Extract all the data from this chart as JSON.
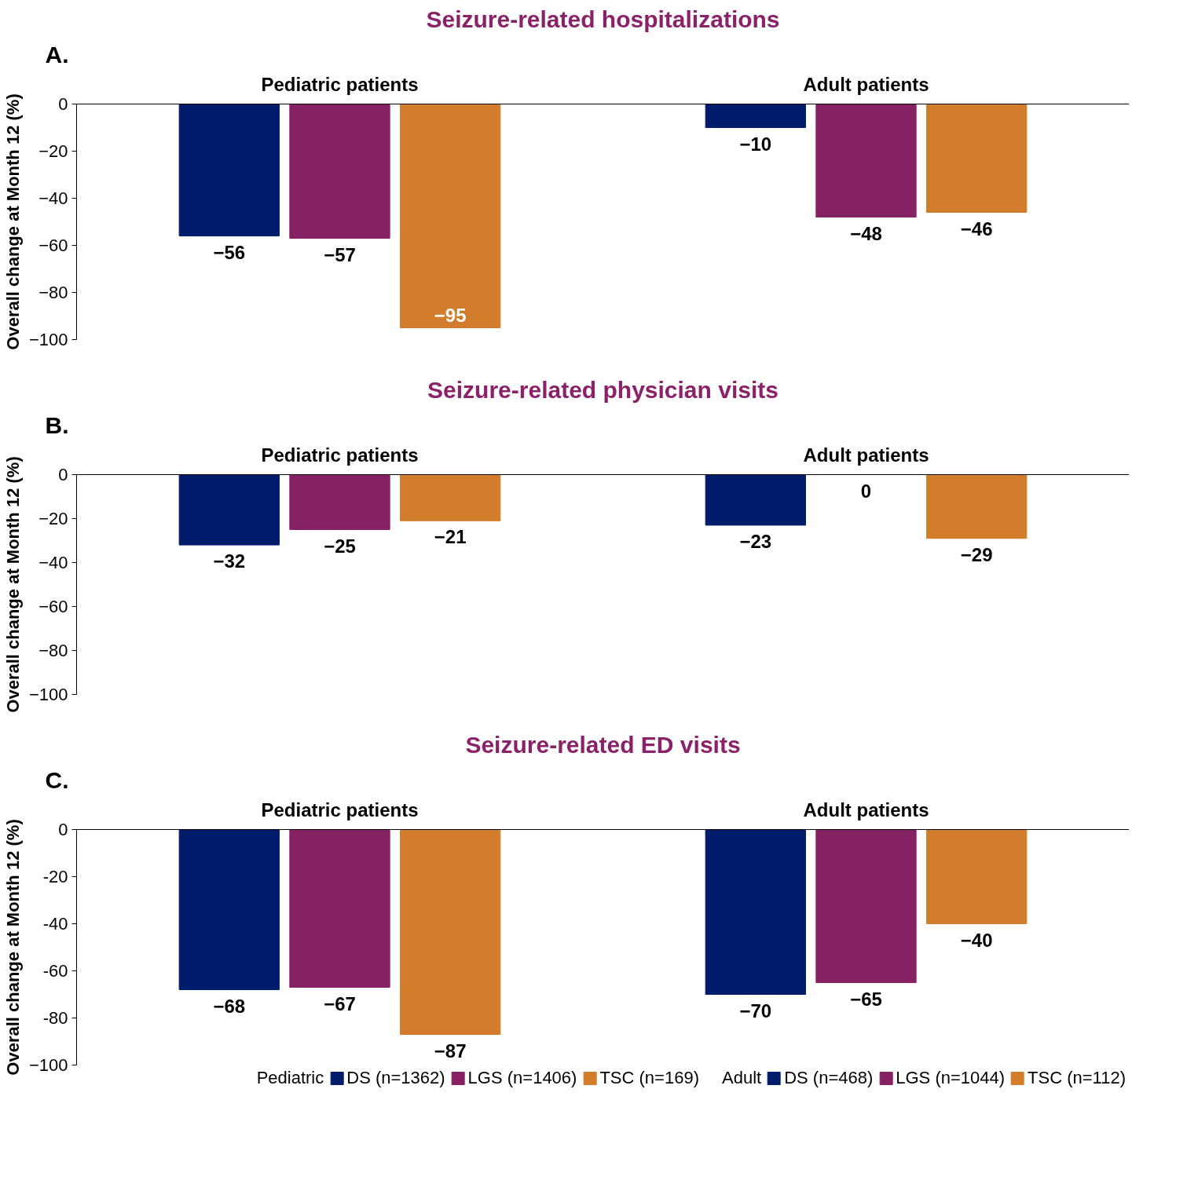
{
  "chart_data": [
    {
      "type": "bar",
      "title": "Seizure-related hospitalizations",
      "ylabel": "Overall change at Month 12 (%)",
      "annotations": [
        "A."
      ],
      "categories": [
        "Pediatric patients",
        "Adult patients"
      ],
      "ylim": [
        -100,
        0
      ],
      "yticks": [
        {
          "value": 0,
          "label": "0"
        },
        {
          "value": -20,
          "label": "−20"
        },
        {
          "value": -40,
          "label": "−40"
        },
        {
          "value": -60,
          "label": "−60"
        },
        {
          "value": -80,
          "label": "−80"
        },
        {
          "value": -100,
          "label": "−100"
        }
      ],
      "series": [
        {
          "color": "#001c6b",
          "values": [
            -56,
            -10
          ],
          "value_labels": [
            "−56",
            "−10"
          ]
        },
        {
          "color": "#862163",
          "values": [
            -57,
            -48
          ],
          "value_labels": [
            "−57",
            "−48"
          ]
        },
        {
          "color": "#d17d2b",
          "values": [
            -95,
            -46
          ],
          "value_labels": [
            "−95",
            "−46"
          ]
        }
      ]
    },
    {
      "type": "bar",
      "title": "Seizure-related physician visits",
      "ylabel": "Overall change at Month 12 (%)",
      "annotations": [
        "B."
      ],
      "categories": [
        "Pediatric patients",
        "Adult patients"
      ],
      "ylim": [
        -100,
        0
      ],
      "yticks": [
        {
          "value": 0,
          "label": "0"
        },
        {
          "value": -20,
          "label": "−20"
        },
        {
          "value": -40,
          "label": "−40"
        },
        {
          "value": -60,
          "label": "−60"
        },
        {
          "value": -80,
          "label": "−80"
        },
        {
          "value": -100,
          "label": "−100"
        }
      ],
      "series": [
        {
          "color": "#001c6b",
          "values": [
            -32,
            -23
          ],
          "value_labels": [
            "−32",
            "−23"
          ]
        },
        {
          "color": "#862163",
          "values": [
            -25,
            0
          ],
          "value_labels": [
            "−25",
            "0"
          ]
        },
        {
          "color": "#d17d2b",
          "values": [
            -21,
            -29
          ],
          "value_labels": [
            "−21",
            "−29"
          ]
        }
      ]
    },
    {
      "type": "bar",
      "title": "Seizure-related ED visits",
      "ylabel": "Overall change at Month 12 (%)",
      "annotations": [
        "C.",
        "Pediatric",
        "Adult"
      ],
      "categories": [
        "Pediatric patients",
        "Adult patients"
      ],
      "ylim": [
        -100,
        0
      ],
      "yticks": [
        0,
        {
          "value": -20,
          "label": "-20"
        },
        {
          "value": -40,
          "label": "-40"
        },
        {
          "value": -60,
          "label": "-60"
        },
        {
          "value": -80,
          "label": "-80"
        },
        {
          "value": -100,
          "label": "−100"
        }
      ],
      "legend": "bottom",
      "series": [
        {
          "name": "DS (n=1362)",
          "color": "#001c6b",
          "values": [
            -68,
            null
          ],
          "value_labels": [
            "−68",
            null
          ]
        },
        {
          "name": "LGS (n=1406)",
          "color": "#862163",
          "values": [
            -67,
            null
          ],
          "value_labels": [
            "−67",
            null
          ]
        },
        {
          "name": "TSC (n=169)",
          "color": "#d17d2b",
          "values": [
            -87,
            null
          ],
          "value_labels": [
            "−87",
            null
          ]
        },
        {
          "name": "DS (n=468)",
          "color": "#001c6b",
          "values": [
            null,
            -70
          ],
          "value_labels": [
            null,
            "−70"
          ]
        },
        {
          "name": "LGS (n=1044)",
          "color": "#862163",
          "values": [
            null,
            -65
          ],
          "value_labels": [
            null,
            "−65"
          ]
        },
        {
          "name": "TSC (n=112)",
          "color": "#d17d2b",
          "values": [
            null,
            -40
          ],
          "value_labels": [
            null,
            "−40"
          ]
        }
      ]
    }
  ]
}
